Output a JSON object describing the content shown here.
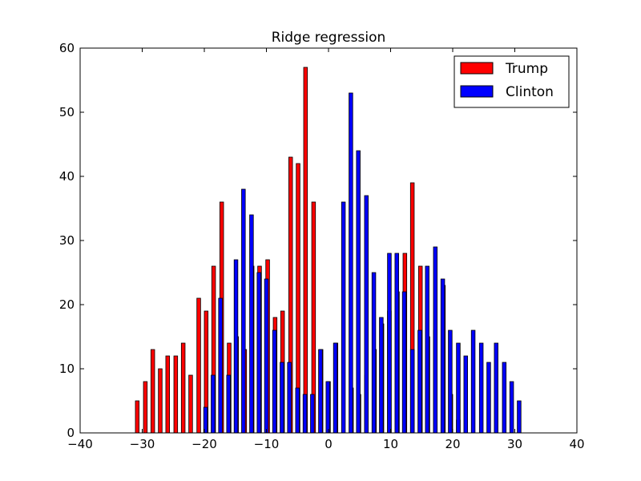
{
  "chart_data": {
    "type": "bar",
    "title": "Ridge regression",
    "xlabel": "",
    "ylabel": "",
    "xlim": [
      -40,
      40
    ],
    "ylim": [
      0,
      60
    ],
    "xticks": [
      -40,
      -30,
      -20,
      -10,
      0,
      10,
      20,
      30,
      40
    ],
    "xtick_labels": [
      "−40",
      "−30",
      "−20",
      "−10",
      "0",
      "10",
      "20",
      "30",
      "40"
    ],
    "yticks": [
      0,
      10,
      20,
      30,
      40,
      50,
      60
    ],
    "ytick_labels": [
      "0",
      "10",
      "20",
      "30",
      "40",
      "50",
      "60"
    ],
    "grid": false,
    "legend_position": "top-right",
    "bar_width": 0.6,
    "series": [
      {
        "name": "Trump",
        "color": "#ff0000",
        "x": [
          -30.8,
          -29.5,
          -28.3,
          -27.1,
          -25.9,
          -24.6,
          -23.4,
          -22.2,
          -20.9,
          -19.7,
          -18.5,
          -17.2,
          -16.0,
          -14.8,
          -13.5,
          -12.3,
          -11.1,
          -9.8,
          -8.6,
          -7.4,
          -6.1,
          -4.9,
          -3.7,
          -2.4,
          -1.2,
          0.0,
          1.2,
          2.4,
          3.7,
          4.9,
          6.1,
          7.4,
          8.6,
          9.8,
          11.1,
          12.3,
          13.5,
          14.8,
          16.0,
          17.2,
          18.5,
          19.7,
          20.9
        ],
        "values": [
          5,
          8,
          13,
          10,
          12,
          12,
          14,
          9,
          21,
          19,
          26,
          36,
          14,
          15,
          13,
          26,
          26,
          27,
          18,
          19,
          43,
          42,
          57,
          36,
          13,
          8,
          14,
          0,
          7,
          6,
          9,
          13,
          17,
          19,
          22,
          28,
          39,
          26,
          15,
          16,
          23,
          6,
          2
        ]
      },
      {
        "name": "Clinton",
        "color": "#0000ff",
        "x": [
          -19.8,
          -18.6,
          -17.4,
          -16.1,
          -14.9,
          -13.7,
          -12.4,
          -11.2,
          -10.0,
          -8.7,
          -7.5,
          -6.3,
          -5.0,
          -3.8,
          -2.6,
          -1.3,
          -0.1,
          1.1,
          2.4,
          3.6,
          4.8,
          6.1,
          7.3,
          8.5,
          9.8,
          11.0,
          12.2,
          13.5,
          14.7,
          15.9,
          17.2,
          18.4,
          19.6,
          20.9,
          22.1,
          23.3,
          24.6,
          25.8,
          27.0,
          28.3,
          29.5,
          30.7
        ],
        "values": [
          4,
          9,
          21,
          9,
          27,
          38,
          34,
          25,
          24,
          16,
          11,
          11,
          7,
          6,
          6,
          13,
          8,
          14,
          36,
          53,
          44,
          37,
          25,
          18,
          28,
          28,
          22,
          13,
          16,
          26,
          29,
          24,
          16,
          14,
          12,
          16,
          14,
          11,
          14,
          11,
          8,
          5
        ]
      }
    ]
  }
}
